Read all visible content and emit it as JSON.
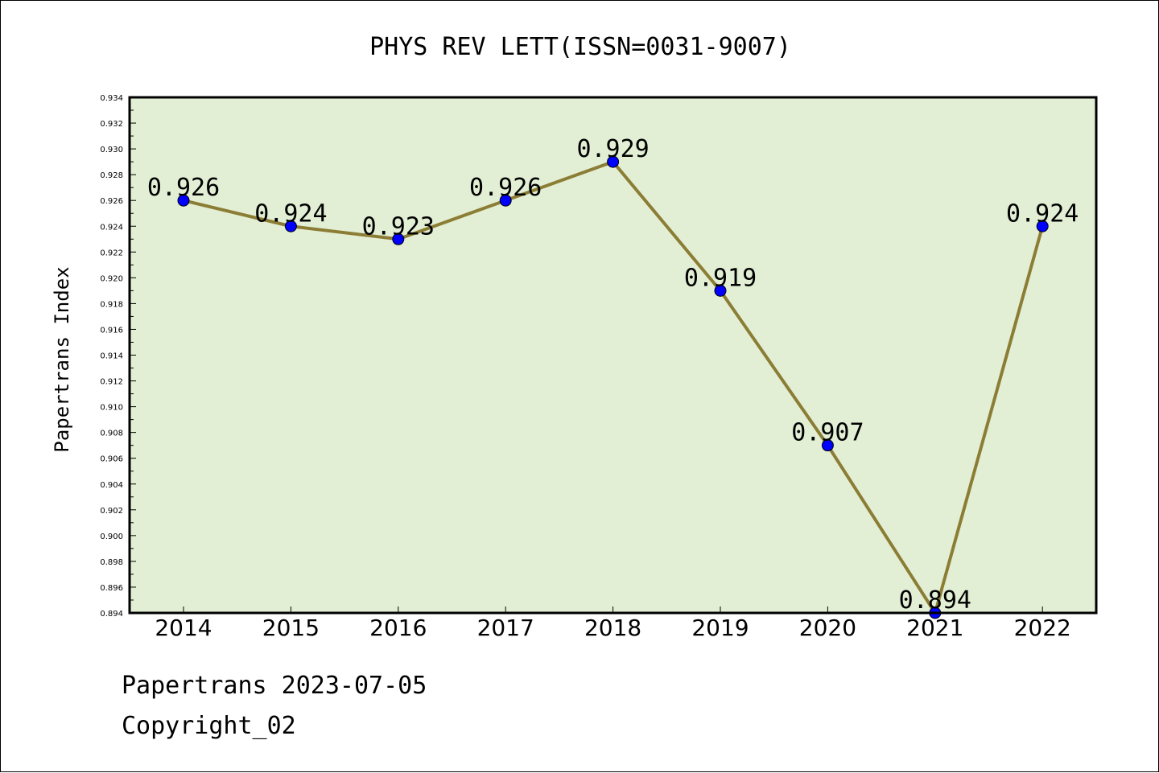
{
  "chart_data": {
    "type": "line",
    "title": "PHYS REV LETT(ISSN=0031-9007)",
    "xlabel": "",
    "ylabel": "Papertrans Index",
    "categories": [
      "2014",
      "2015",
      "2016",
      "2017",
      "2018",
      "2019",
      "2020",
      "2021",
      "2022"
    ],
    "values": [
      0.926,
      0.924,
      0.923,
      0.926,
      0.929,
      0.919,
      0.907,
      0.894,
      0.924
    ],
    "data_labels": [
      "0.926",
      "0.924",
      "0.923",
      "0.926",
      "0.929",
      "0.919",
      "0.907",
      "0.894",
      "0.924"
    ],
    "ylim": [
      0.894,
      0.934
    ],
    "yticks": [
      "0.894",
      "0.896",
      "0.898",
      "0.900",
      "0.902",
      "0.904",
      "0.906",
      "0.908",
      "0.910",
      "0.912",
      "0.914",
      "0.916",
      "0.918",
      "0.920",
      "0.922",
      "0.924",
      "0.926",
      "0.928",
      "0.930",
      "0.932",
      "0.934"
    ],
    "grid": false,
    "colors": {
      "plot_background": "#e2efd5",
      "line": "#8c7d35",
      "marker": "#0000ff"
    }
  },
  "footer": {
    "line1": "Papertrans 2023-07-05",
    "line2": "Copyright_02"
  }
}
